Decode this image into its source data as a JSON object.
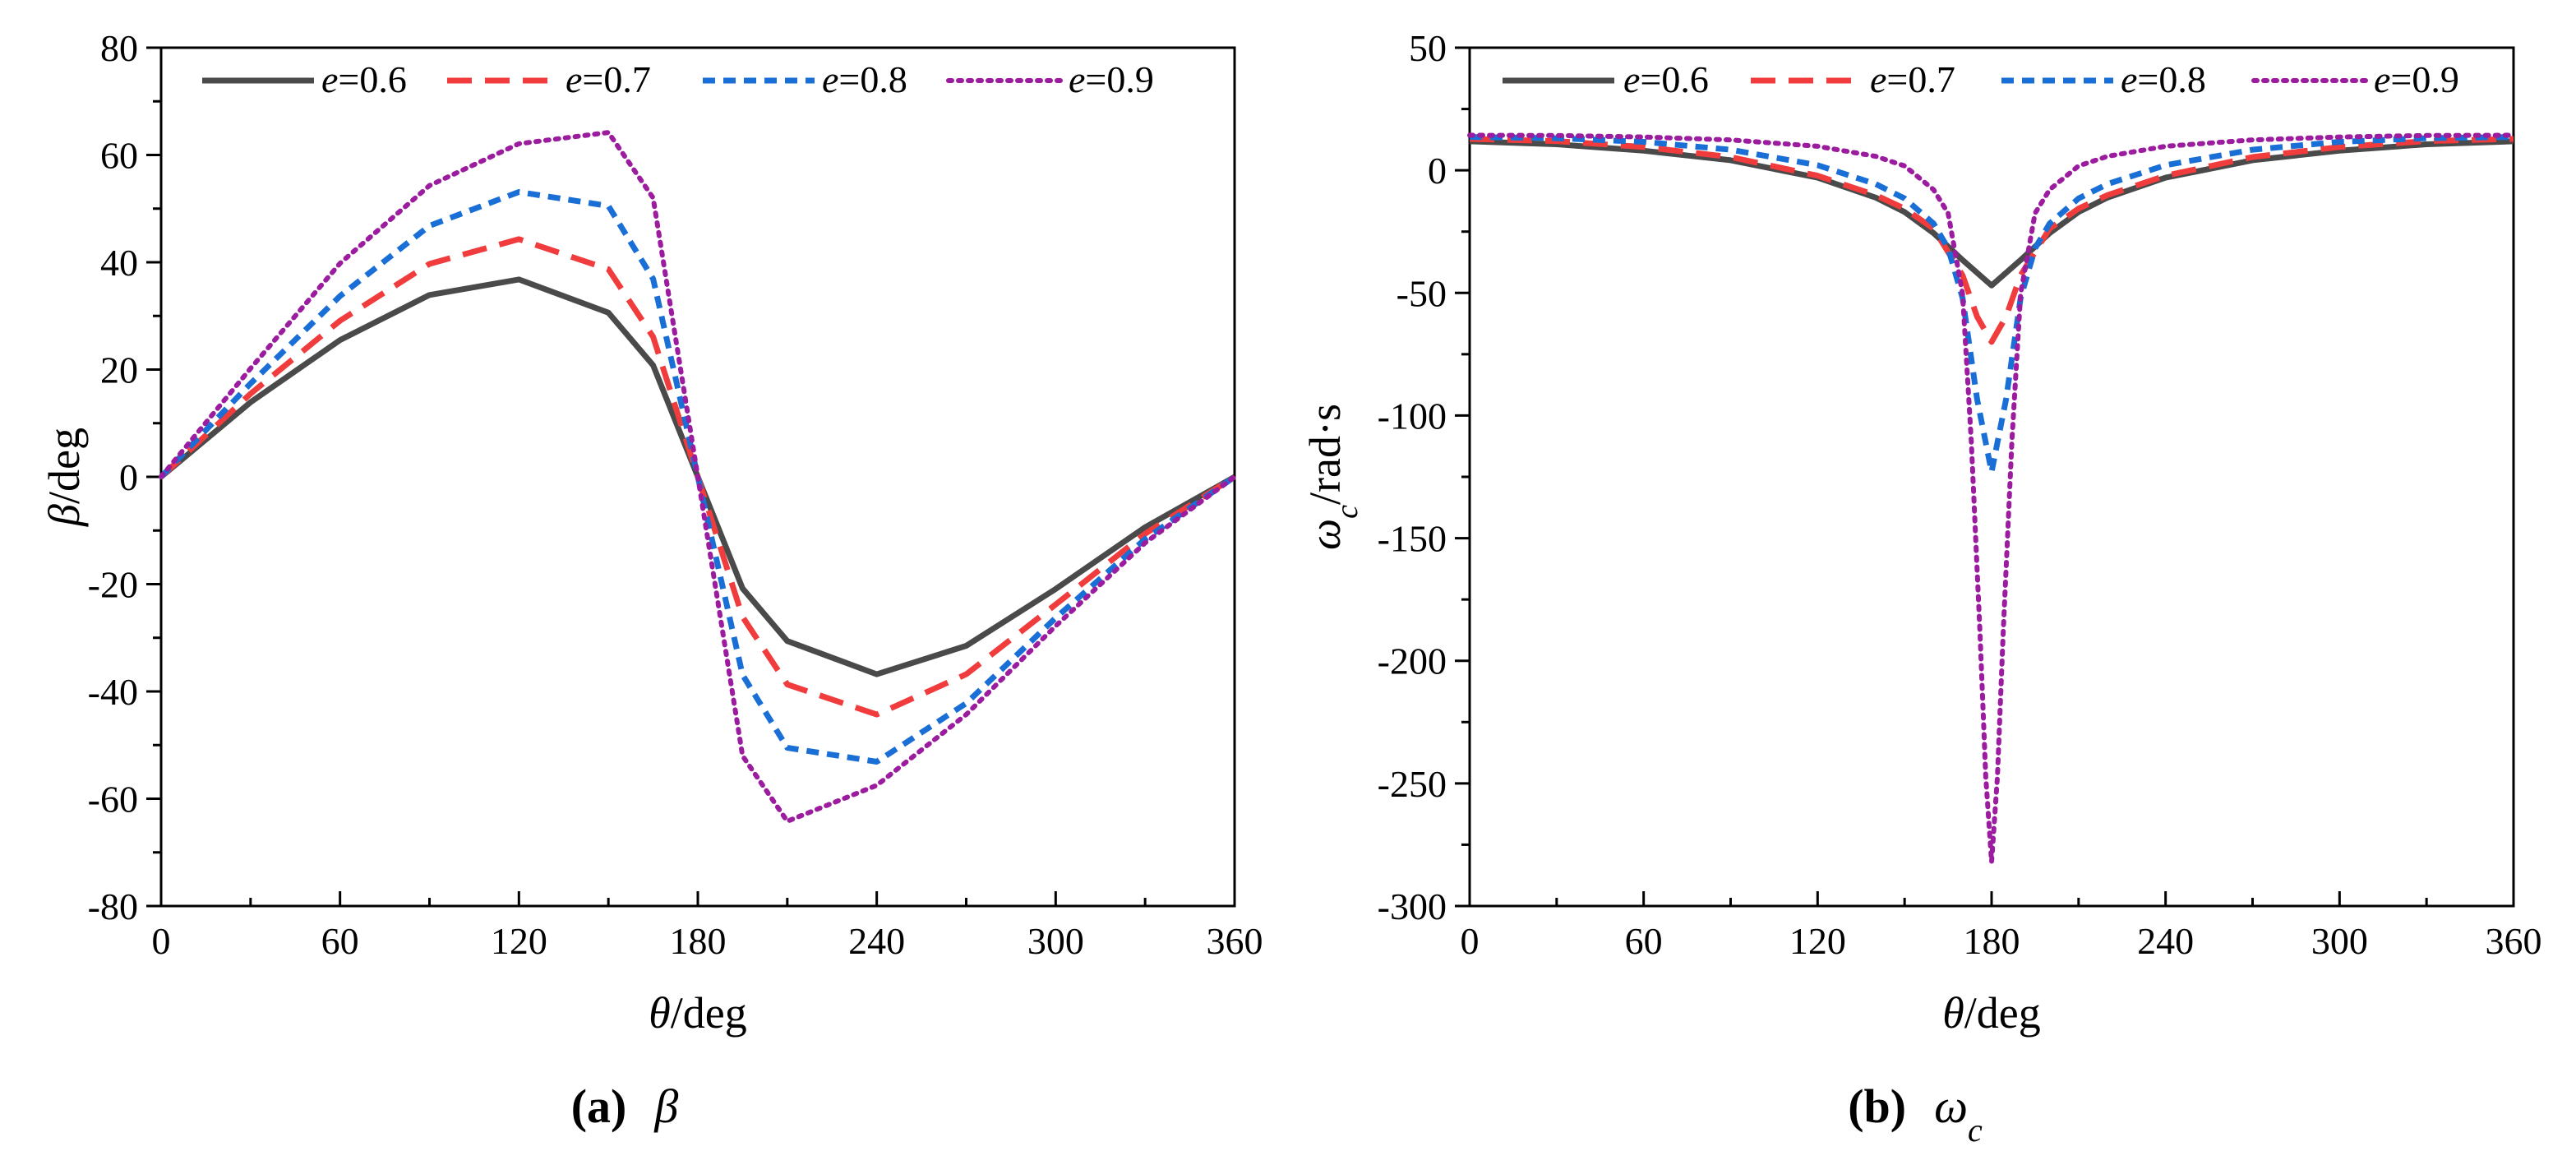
{
  "chart_data": [
    {
      "type": "line",
      "panel": "a",
      "title": "",
      "caption": {
        "letter": "(a)",
        "symbol": "β"
      },
      "xlabel": {
        "symbol": "θ",
        "unit": "/deg"
      },
      "ylabel": {
        "symbol": "β",
        "unit": "/deg"
      },
      "xlim": [
        0,
        360
      ],
      "ylim": [
        -80,
        80
      ],
      "xticks": [
        0,
        60,
        120,
        180,
        240,
        300,
        360
      ],
      "yticks": [
        -80,
        -60,
        -40,
        -20,
        0,
        20,
        40,
        60,
        80
      ],
      "legend": {
        "placement": "top",
        "prefix": "e"
      },
      "series": [
        {
          "name": "e=0.6",
          "e_value": "=0.6",
          "color": "#4a4a4a",
          "style": "solid",
          "x": [
            0,
            30,
            60,
            90,
            120,
            150,
            165,
            180,
            195,
            210,
            240,
            270,
            300,
            330,
            360
          ],
          "values": [
            0,
            13.9,
            25.5,
            33.9,
            36.8,
            30.6,
            20.8,
            0,
            -20.8,
            -30.6,
            -36.8,
            -31.5,
            -20.9,
            -9.4,
            0
          ]
        },
        {
          "name": "e=0.7",
          "e_value": "=0.7",
          "color": "#f03c3c",
          "style": "dashed",
          "x": [
            0,
            30,
            60,
            90,
            120,
            150,
            165,
            180,
            195,
            210,
            240,
            270,
            300,
            330,
            360
          ],
          "values": [
            0,
            15.5,
            29.1,
            39.7,
            44.3,
            38.7,
            26.1,
            0,
            -26.1,
            -38.7,
            -44.3,
            -36.8,
            -23.8,
            -10.6,
            0
          ]
        },
        {
          "name": "e=0.8",
          "e_value": "=0.8",
          "color": "#1a6fd6",
          "style": "short-dashed",
          "x": [
            0,
            30,
            60,
            90,
            120,
            150,
            165,
            180,
            195,
            210,
            240,
            270,
            300,
            330,
            360
          ],
          "values": [
            0,
            17.4,
            33.7,
            46.8,
            53.1,
            50.5,
            36.9,
            0,
            -36.9,
            -50.5,
            -53.1,
            -42.2,
            -26.3,
            -11.6,
            0
          ]
        },
        {
          "name": "e=0.9",
          "e_value": "=0.9",
          "color": "#9b1c9e",
          "style": "dotted",
          "x": [
            0,
            30,
            60,
            90,
            120,
            150,
            165,
            180,
            195,
            210,
            240,
            270,
            300,
            330,
            360
          ],
          "values": [
            0,
            20.2,
            39.8,
            54.3,
            62.1,
            64.2,
            52.0,
            0,
            -52.0,
            -64.2,
            -57.5,
            -44.3,
            -27.8,
            -12.3,
            0
          ]
        }
      ]
    },
    {
      "type": "line",
      "panel": "b",
      "title": "",
      "caption": {
        "letter": "(b)",
        "symbol": "ω",
        "subscript": "c"
      },
      "xlabel": {
        "symbol": "θ",
        "unit": "/deg"
      },
      "ylabel": {
        "symbol": "ω",
        "subscript": "c",
        "unit": "/rad·s"
      },
      "xlim": [
        0,
        360
      ],
      "ylim": [
        -300,
        50
      ],
      "xticks": [
        0,
        60,
        120,
        180,
        240,
        300,
        360
      ],
      "yticks": [
        -300,
        -250,
        -200,
        -150,
        -100,
        -50,
        0,
        50
      ],
      "legend": {
        "placement": "top",
        "prefix": "e"
      },
      "series": [
        {
          "name": "e=0.6",
          "e_value": "=0.6",
          "color": "#4a4a4a",
          "style": "solid",
          "x": [
            0,
            30,
            60,
            90,
            120,
            140,
            150,
            160,
            170,
            180,
            190,
            200,
            210,
            220,
            240,
            270,
            300,
            330,
            360
          ],
          "values": [
            11.8,
            10.6,
            8.0,
            4.1,
            -3.0,
            -11.1,
            -17.0,
            -25.6,
            -36.6,
            -47.0,
            -36.6,
            -25.6,
            -17.0,
            -11.1,
            -3.0,
            4.1,
            8.0,
            10.6,
            11.8
          ]
        },
        {
          "name": "e=0.7",
          "e_value": "=0.7",
          "color": "#f03c3c",
          "style": "dashed",
          "x": [
            0,
            30,
            60,
            90,
            120,
            140,
            150,
            160,
            170,
            175,
            180,
            185,
            190,
            200,
            210,
            220,
            240,
            270,
            300,
            330,
            360
          ],
          "values": [
            12.8,
            11.9,
            9.5,
            5.4,
            -2.2,
            -10.1,
            -15.6,
            -23.8,
            -42.8,
            -59.7,
            -70.0,
            -59.7,
            -42.8,
            -23.8,
            -15.6,
            -10.1,
            -2.2,
            5.4,
            9.5,
            11.9,
            12.8
          ]
        },
        {
          "name": "e=0.8",
          "e_value": "=0.8",
          "color": "#1a6fd6",
          "style": "short-dashed",
          "x": [
            0,
            30,
            60,
            90,
            120,
            140,
            150,
            160,
            165,
            170,
            175,
            180,
            185,
            190,
            195,
            200,
            210,
            220,
            240,
            270,
            300,
            330,
            360
          ],
          "values": [
            13.6,
            13.1,
            11.6,
            8.4,
            2.1,
            -5.6,
            -11.5,
            -21.7,
            -31.8,
            -52.1,
            -93.4,
            -123.0,
            -93.4,
            -52.1,
            -31.8,
            -21.7,
            -11.5,
            -5.6,
            2.1,
            8.4,
            11.6,
            13.1,
            13.6
          ]
        },
        {
          "name": "e=0.9",
          "e_value": "=0.9",
          "color": "#9b1c9e",
          "style": "dotted",
          "x": [
            0,
            30,
            60,
            90,
            120,
            140,
            150,
            160,
            165,
            170,
            173,
            176,
            178,
            180,
            182,
            184,
            187,
            190,
            195,
            200,
            210,
            220,
            240,
            270,
            300,
            330,
            360
          ],
          "values": [
            14.3,
            14.2,
            13.6,
            12.4,
            9.8,
            5.7,
            1.8,
            -7.9,
            -17.5,
            -50.4,
            -110.5,
            -188.7,
            -247.3,
            -282.0,
            -247.3,
            -188.7,
            -110.5,
            -50.4,
            -17.5,
            -7.9,
            1.8,
            5.7,
            9.8,
            12.4,
            13.6,
            14.2,
            14.3
          ]
        }
      ]
    }
  ]
}
